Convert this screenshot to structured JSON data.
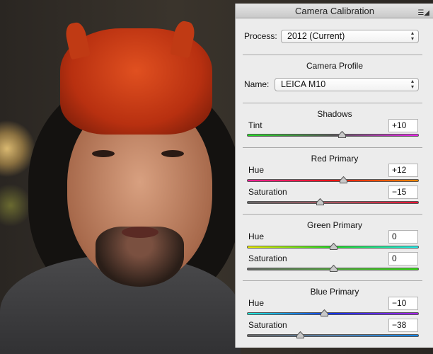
{
  "panel": {
    "title": "Camera Calibration",
    "menu_icon": "panel-menu-icon",
    "process": {
      "label": "Process:",
      "value": "2012 (Current)"
    },
    "camera_profile": {
      "heading": "Camera Profile",
      "name_label": "Name:",
      "value": "LEICA M10"
    },
    "shadows": {
      "heading": "Shadows",
      "tint": {
        "label": "Tint",
        "value": "+10",
        "num": 10
      }
    },
    "red_primary": {
      "heading": "Red Primary",
      "hue": {
        "label": "Hue",
        "value": "+12",
        "num": 12
      },
      "saturation": {
        "label": "Saturation",
        "value": "−15",
        "num": -15
      }
    },
    "green_primary": {
      "heading": "Green Primary",
      "hue": {
        "label": "Hue",
        "value": "0",
        "num": 0
      },
      "saturation": {
        "label": "Saturation",
        "value": "0",
        "num": 0
      }
    },
    "blue_primary": {
      "heading": "Blue Primary",
      "hue": {
        "label": "Hue",
        "value": "−10",
        "num": -10
      },
      "saturation": {
        "label": "Saturation",
        "value": "−38",
        "num": -38
      }
    },
    "slider_range": [
      -100,
      100
    ]
  },
  "track_colors": {
    "tint": [
      "#22dd22",
      "#555555",
      "#ee22ee"
    ],
    "red_hue": [
      "#ee2299",
      "#ee1111",
      "#ee8800"
    ],
    "red_sat": [
      "#666666",
      "#aa5560",
      "#ee1133"
    ],
    "green_hue": [
      "#eeee00",
      "#22dd22",
      "#22eeee"
    ],
    "green_sat": [
      "#666666",
      "#55aa40",
      "#33dd11"
    ],
    "blue_hue": [
      "#22eedd",
      "#1133ee",
      "#aa22ee"
    ],
    "blue_sat": [
      "#666666",
      "#5580aa",
      "#1188ee"
    ]
  }
}
